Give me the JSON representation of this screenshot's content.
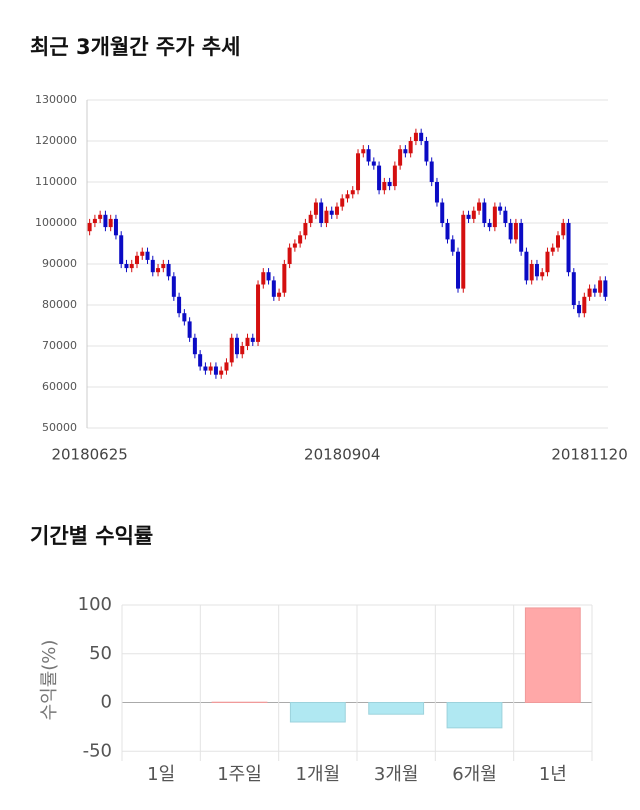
{
  "chart_data": [
    {
      "type": "candlestick",
      "title": "최근 3개월간 주가 추세",
      "categories": [
        "20180625",
        null,
        null,
        null,
        null,
        null,
        null,
        null,
        null,
        null,
        null,
        null,
        null,
        null,
        null,
        null,
        null,
        null,
        null,
        null,
        null,
        null,
        null,
        null,
        null,
        null,
        null,
        null,
        null,
        null,
        null,
        null,
        null,
        null,
        null,
        null,
        null,
        null,
        null,
        null,
        null,
        null,
        null,
        null,
        null,
        null,
        null,
        null,
        "20180904",
        null,
        null,
        null,
        null,
        null,
        null,
        null,
        null,
        null,
        null,
        null,
        null,
        null,
        null,
        null,
        null,
        null,
        null,
        null,
        null,
        null,
        null,
        null,
        null,
        null,
        null,
        null,
        null,
        null,
        null,
        null,
        null,
        null,
        null,
        null,
        null,
        null,
        null,
        null,
        null,
        null,
        null,
        null,
        null,
        null,
        null,
        "20181120",
        null,
        null,
        null
      ],
      "open": [
        98000,
        100000,
        101000,
        102000,
        99000,
        101000,
        97000,
        90000,
        89000,
        90000,
        92000,
        93000,
        91000,
        88000,
        89000,
        90000,
        87000,
        82000,
        78000,
        76000,
        72000,
        68000,
        65000,
        64000,
        65000,
        63000,
        64000,
        66000,
        72000,
        68000,
        70000,
        72000,
        71000,
        85000,
        88000,
        86000,
        82000,
        83000,
        90000,
        94000,
        95000,
        97000,
        100000,
        102000,
        105000,
        100000,
        103000,
        102000,
        104000,
        106000,
        107000,
        108000,
        117000,
        118000,
        115000,
        114000,
        108000,
        110000,
        109000,
        114000,
        118000,
        117000,
        120000,
        122000,
        120000,
        115000,
        110000,
        105000,
        100000,
        96000,
        93000,
        84000,
        102000,
        101000,
        103000,
        105000,
        100000,
        99000,
        104000,
        103000,
        100000,
        96000,
        100000,
        93000,
        86000,
        90000,
        87000,
        88000,
        93000,
        94000,
        97000,
        100000,
        88000,
        80000,
        78000,
        82000,
        84000,
        83000,
        86000
      ],
      "high": [
        101000,
        102000,
        103000,
        103000,
        102000,
        102000,
        98000,
        91000,
        91000,
        93000,
        94000,
        94000,
        92000,
        90000,
        91000,
        91000,
        88000,
        83000,
        79000,
        77000,
        73000,
        69000,
        66000,
        66000,
        66000,
        65000,
        67000,
        73000,
        73000,
        71000,
        73000,
        73000,
        86000,
        89000,
        89000,
        87000,
        84000,
        91000,
        95000,
        96000,
        98000,
        101000,
        103000,
        106000,
        106000,
        104000,
        104000,
        105000,
        107000,
        108000,
        109000,
        118000,
        119000,
        119000,
        116000,
        115000,
        111000,
        111000,
        115000,
        119000,
        119000,
        121000,
        123000,
        123000,
        121000,
        116000,
        111000,
        106000,
        101000,
        97000,
        94000,
        103000,
        103000,
        104000,
        106000,
        106000,
        101000,
        105000,
        105000,
        104000,
        101000,
        101000,
        101000,
        94000,
        91000,
        91000,
        89000,
        94000,
        95000,
        98000,
        101000,
        101000,
        89000,
        81000,
        83000,
        85000,
        85000,
        87000,
        87000
      ],
      "low": [
        97000,
        99000,
        100000,
        98000,
        98000,
        96000,
        89000,
        88000,
        88000,
        89000,
        91000,
        90000,
        87000,
        87000,
        88000,
        86000,
        81000,
        77000,
        75000,
        71000,
        67000,
        64000,
        63000,
        63000,
        62000,
        62000,
        63000,
        65000,
        67000,
        67000,
        69000,
        70000,
        70000,
        84000,
        85000,
        81000,
        81000,
        82000,
        89000,
        93000,
        94000,
        96000,
        99000,
        101000,
        99000,
        99000,
        101000,
        101000,
        103000,
        105000,
        106000,
        107000,
        116000,
        114000,
        113000,
        107000,
        107000,
        108000,
        108000,
        113000,
        116000,
        116000,
        119000,
        119000,
        114000,
        109000,
        104000,
        99000,
        95000,
        92000,
        83000,
        83000,
        100000,
        100000,
        102000,
        99000,
        98000,
        98000,
        102000,
        99000,
        95000,
        95000,
        92000,
        85000,
        85000,
        86000,
        86000,
        87000,
        92000,
        93000,
        96000,
        87000,
        79000,
        77000,
        77000,
        81000,
        82000,
        82000,
        81000
      ],
      "close": [
        100000,
        101000,
        102000,
        99000,
        101000,
        97000,
        90000,
        89000,
        90000,
        92000,
        93000,
        91000,
        88000,
        89000,
        90000,
        87000,
        82000,
        78000,
        76000,
        72000,
        68000,
        65000,
        64000,
        65000,
        63000,
        64000,
        66000,
        72000,
        68000,
        70000,
        72000,
        71000,
        85000,
        88000,
        86000,
        82000,
        83000,
        90000,
        94000,
        95000,
        97000,
        100000,
        102000,
        105000,
        100000,
        103000,
        102000,
        104000,
        106000,
        107000,
        108000,
        117000,
        118000,
        115000,
        114000,
        108000,
        110000,
        109000,
        114000,
        118000,
        117000,
        120000,
        122000,
        120000,
        115000,
        110000,
        105000,
        100000,
        96000,
        93000,
        84000,
        102000,
        101000,
        103000,
        105000,
        100000,
        99000,
        104000,
        103000,
        100000,
        96000,
        100000,
        93000,
        86000,
        90000,
        87000,
        88000,
        93000,
        94000,
        97000,
        100000,
        88000,
        80000,
        78000,
        82000,
        84000,
        83000,
        86000,
        82000
      ],
      "up_color": "#d40f0f",
      "down_color": "#0b0bc4",
      "ylim": [
        50000,
        130000
      ],
      "yticks": [
        50000,
        60000,
        70000,
        80000,
        90000,
        100000,
        110000,
        120000,
        130000
      ],
      "grid": true
    },
    {
      "type": "bar",
      "title": "기간별 수익률",
      "ylabel": "수익률(%)",
      "categories": [
        "1일",
        "1주일",
        "1개월",
        "3개월",
        "6개월",
        "1년"
      ],
      "values": [
        0,
        0.3,
        -20,
        -12,
        -26,
        97
      ],
      "positive_color": "#ffa8a8",
      "negative_color": "#b0e8f2",
      "ylim": [
        -60,
        100
      ],
      "yticks": [
        -50,
        0,
        50,
        100
      ],
      "grid": true
    }
  ]
}
